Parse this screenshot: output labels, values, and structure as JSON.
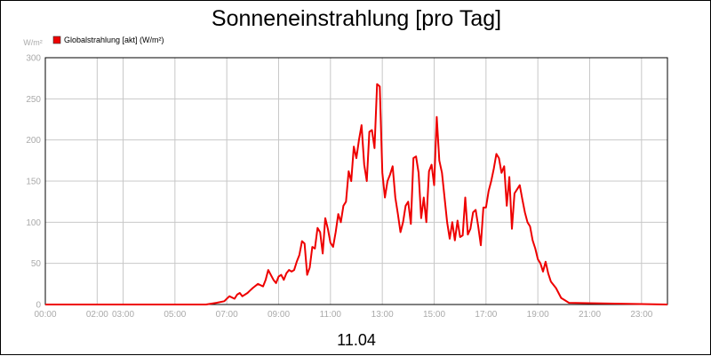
{
  "chart_data": {
    "type": "line",
    "title": "Sonneneinstrahlung [pro Tag]",
    "ylabel": "W/m²",
    "xlabel": "",
    "date_label": "11.04",
    "ylim": [
      0,
      300
    ],
    "yticks": [
      0,
      50,
      100,
      150,
      200,
      250,
      300
    ],
    "xlim": [
      0,
      24
    ],
    "xticks": [
      {
        "value": 0,
        "label": "00:00"
      },
      {
        "value": 2,
        "label": "02:00"
      },
      {
        "value": 3,
        "label": "03:00"
      },
      {
        "value": 5,
        "label": "05:00"
      },
      {
        "value": 7,
        "label": "07:00"
      },
      {
        "value": 9,
        "label": "09:00"
      },
      {
        "value": 11,
        "label": "11:00"
      },
      {
        "value": 13,
        "label": "13:00"
      },
      {
        "value": 15,
        "label": "15:00"
      },
      {
        "value": 17,
        "label": "17:00"
      },
      {
        "value": 19,
        "label": "19:00"
      },
      {
        "value": 21,
        "label": "21:00"
      },
      {
        "value": 23,
        "label": "23:00"
      }
    ],
    "grid": true,
    "legend_position": "top-left",
    "series": [
      {
        "name": "Globalstrahlung [akt] (W/m²)",
        "color": "#ee0000",
        "x": [
          0,
          6.2,
          6.6,
          6.9,
          7.1,
          7.3,
          7.4,
          7.5,
          7.6,
          7.8,
          7.9,
          8.0,
          8.2,
          8.4,
          8.5,
          8.6,
          8.8,
          8.9,
          9.0,
          9.1,
          9.2,
          9.3,
          9.4,
          9.5,
          9.6,
          9.7,
          9.8,
          9.9,
          10.0,
          10.1,
          10.2,
          10.3,
          10.4,
          10.5,
          10.6,
          10.7,
          10.8,
          10.9,
          11.0,
          11.1,
          11.2,
          11.3,
          11.4,
          11.5,
          11.6,
          11.7,
          11.8,
          11.9,
          12.0,
          12.1,
          12.2,
          12.3,
          12.4,
          12.5,
          12.6,
          12.7,
          12.8,
          12.9,
          13.0,
          13.1,
          13.2,
          13.3,
          13.4,
          13.5,
          13.6,
          13.7,
          13.8,
          13.9,
          14.0,
          14.1,
          14.2,
          14.3,
          14.4,
          14.5,
          14.6,
          14.7,
          14.8,
          14.9,
          15.0,
          15.1,
          15.2,
          15.3,
          15.4,
          15.5,
          15.6,
          15.7,
          15.8,
          15.9,
          16.0,
          16.1,
          16.2,
          16.3,
          16.4,
          16.5,
          16.6,
          16.7,
          16.8,
          16.9,
          17.0,
          17.1,
          17.2,
          17.3,
          17.4,
          17.5,
          17.6,
          17.7,
          17.8,
          17.9,
          18.0,
          18.1,
          18.2,
          18.3,
          18.4,
          18.5,
          18.6,
          18.7,
          18.8,
          18.9,
          19.0,
          19.1,
          19.2,
          19.3,
          19.4,
          19.5,
          19.7,
          19.9,
          20.2,
          24
        ],
        "values": [
          0,
          0,
          2,
          4,
          10,
          7,
          12,
          14,
          10,
          14,
          17,
          20,
          25,
          22,
          30,
          42,
          30,
          26,
          34,
          36,
          30,
          38,
          42,
          40,
          42,
          52,
          60,
          77,
          74,
          36,
          45,
          70,
          68,
          93,
          88,
          62,
          105,
          92,
          75,
          70,
          88,
          110,
          100,
          120,
          125,
          162,
          150,
          192,
          178,
          200,
          218,
          170,
          150,
          210,
          212,
          190,
          268,
          265,
          160,
          130,
          150,
          158,
          168,
          130,
          110,
          88,
          100,
          120,
          125,
          98,
          178,
          180,
          160,
          105,
          130,
          100,
          162,
          170,
          145,
          228,
          175,
          160,
          130,
          100,
          80,
          100,
          78,
          102,
          82,
          84,
          130,
          85,
          92,
          112,
          115,
          95,
          72,
          118,
          118,
          138,
          150,
          165,
          183,
          178,
          160,
          168,
          120,
          155,
          92,
          135,
          140,
          145,
          128,
          112,
          100,
          95,
          78,
          68,
          55,
          50,
          40,
          52,
          38,
          28,
          20,
          8,
          2,
          0
        ]
      }
    ]
  }
}
